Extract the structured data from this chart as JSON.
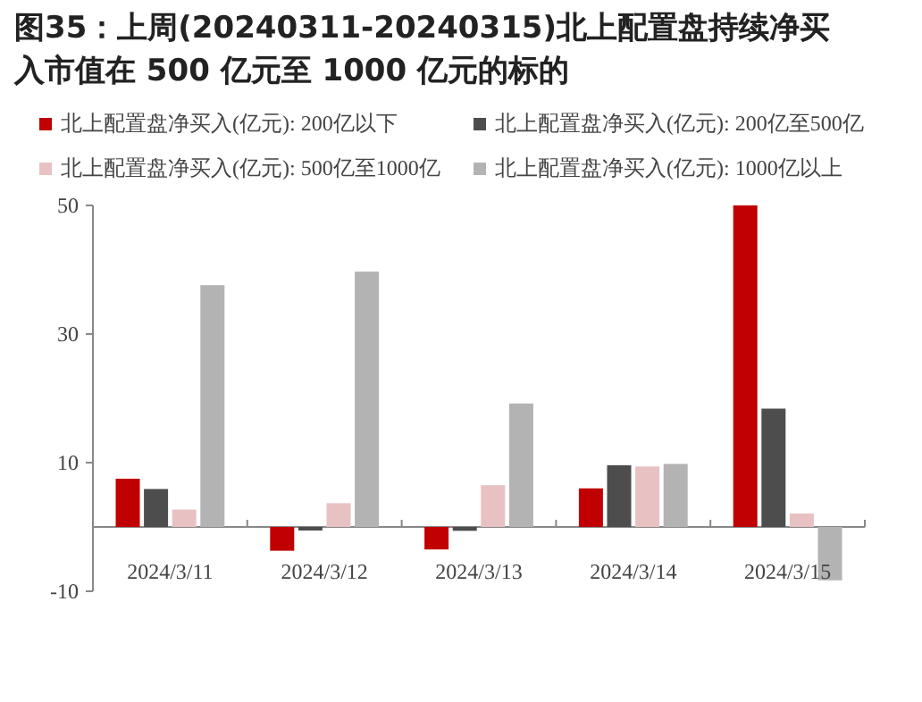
{
  "chart_data": {
    "type": "bar",
    "title": "图35：上周(20240311-20240315)北上配置盘持续净买入市值在 500 亿元至 1000 亿元的标的",
    "categories": [
      "2024/3/11",
      "2024/3/12",
      "2024/3/13",
      "2024/3/14",
      "2024/3/15"
    ],
    "series": [
      {
        "name": "北上配置盘净买入(亿元): 200亿以下",
        "color": "#c00000",
        "values": [
          7.5,
          -3.7,
          -3.5,
          6.0,
          50
        ]
      },
      {
        "name": "北上配置盘净买入(亿元): 200亿至500亿",
        "color": "#4d4d4e",
        "values": [
          5.9,
          -0.2,
          -0.6,
          9.6,
          18.4
        ]
      },
      {
        "name": "北上配置盘净买入(亿元): 500亿至1000亿",
        "color": "#e8c1c2",
        "values": [
          2.7,
          3.7,
          6.5,
          9.4,
          2.1
        ]
      },
      {
        "name": "北上配置盘净买入(亿元): 1000亿以上",
        "color": "#b3b3b3",
        "values": [
          37.6,
          39.7,
          19.2,
          9.8,
          -8.3
        ]
      }
    ],
    "ylim": [
      -10,
      50
    ],
    "yticks": [
      -10,
      10,
      30,
      50
    ],
    "grid": false,
    "legend": "top"
  }
}
